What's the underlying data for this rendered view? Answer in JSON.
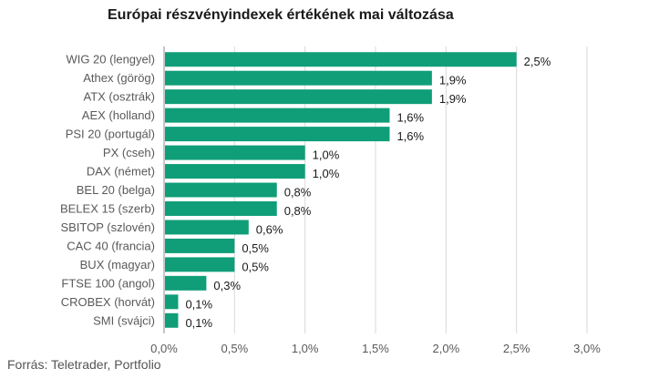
{
  "chart_data": {
    "type": "bar",
    "orientation": "horizontal",
    "title": "Európai részvényindexek értékének mai változása",
    "source": "Forrás: Teletrader, Portfolio",
    "categories": [
      "WIG 20 (lengyel)",
      "Athex (görög)",
      "ATX (osztrák)",
      "AEX (holland)",
      "PSI 20 (portugál)",
      "PX (cseh)",
      "DAX (német)",
      "BEL 20 (belga)",
      "BELEX 15 (szerb)",
      "SBITOP (szlovén)",
      "CAC 40 (francia)",
      "BUX (magyar)",
      "FTSE 100 (angol)",
      "CROBEX (horvát)",
      "SMI (svájci)"
    ],
    "values": [
      2.5,
      1.9,
      1.9,
      1.6,
      1.6,
      1.0,
      1.0,
      0.8,
      0.8,
      0.6,
      0.5,
      0.5,
      0.3,
      0.1,
      0.1
    ],
    "value_labels": [
      "2,5%",
      "1,9%",
      "1,9%",
      "1,6%",
      "1,6%",
      "1,0%",
      "1,0%",
      "0,8%",
      "0,8%",
      "0,6%",
      "0,5%",
      "0,5%",
      "0,3%",
      "0,1%",
      "0,1%"
    ],
    "xlim": [
      0,
      3.0
    ],
    "x_ticks": [
      0,
      0.5,
      1.0,
      1.5,
      2.0,
      2.5,
      3.0
    ],
    "x_tick_labels": [
      "0,0%",
      "0,5%",
      "1,0%",
      "1,5%",
      "2,0%",
      "2,5%",
      "3,0%"
    ],
    "xlabel": "",
    "ylabel": "",
    "grid": "vertical",
    "legend": "none",
    "colors": {
      "bar": "#0f9e78",
      "grid": "#d9d9d9",
      "axis": "#8c8c8c"
    }
  }
}
